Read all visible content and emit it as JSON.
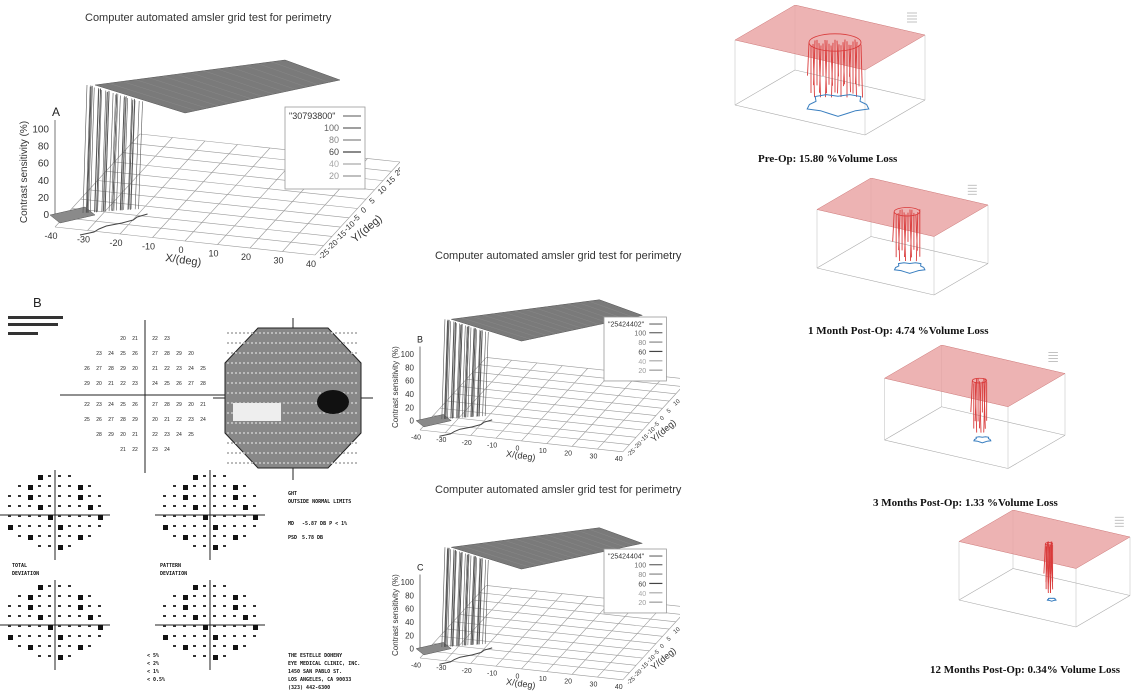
{
  "left_title": "Computer automated amsler grid test for perimetry",
  "mid_title_b": "Computer automated amsler grid test for perimetry",
  "mid_title_c": "Computer automated amsler grid test for perimetry",
  "panel_a_label": "A",
  "panel_b_label": "B",
  "panel_c_label": "C",
  "perimetry_label": "B",
  "perimetry_text": {
    "line1": "TOTAL",
    "line2": "DEVIATION",
    "line3": "PATTERN",
    "line4": "DEVIATION",
    "ght": "GHT",
    "ght_result": "OUTSIDE NORMAL LIMITS",
    "md": "MD",
    "md_val": "-5.87 DB  P < 1%",
    "psd": "PSD",
    "psd_val": "5.78 DB",
    "footer1": "THE ESTELLE DOHENY",
    "footer2": "EYE MEDICAL CLINIC, INC.",
    "footer3": "1450 SAN PABLO ST.",
    "footer4": "LOS ANGELES, CA 90033",
    "footer5": "(323) 442-6300",
    "legend1": "< 5%",
    "legend2": "< 2%",
    "legend3": "< 1%",
    "legend4": "< 0.5%"
  },
  "chart_data": [
    {
      "type": "surface3d",
      "panel": "A",
      "title": "Computer automated amsler grid test for perimetry",
      "zlabel": "Contrast sensitivity (%)",
      "xlabel": "X/(deg)",
      "ylabel": "Y/(deg)",
      "z_ticks": [
        "0",
        "20",
        "40",
        "60",
        "80",
        "100"
      ],
      "x_ticks": [
        "-40",
        "-30",
        "-20",
        "-10",
        "0",
        "10",
        "20",
        "30",
        "40"
      ],
      "y_ticks": [
        "-25",
        "-20",
        "-15",
        "-10",
        "-5",
        "0",
        "5",
        "10",
        "15",
        "20",
        "25"
      ],
      "legend_title": "\"30793800\"",
      "legend": [
        "100",
        "80",
        "60",
        "40",
        "20"
      ],
      "legend_colors": [
        "#666666",
        "#888888",
        "#444444",
        "#aaaaaa",
        "#999999"
      ]
    },
    {
      "type": "surface3d",
      "panel": "B",
      "title": "Computer automated amsler grid test for perimetry",
      "zlabel": "Contrast sensitivity (%)",
      "xlabel": "X/(deg)",
      "ylabel": "Y/(deg)",
      "z_ticks": [
        "0",
        "20",
        "40",
        "60",
        "80",
        "100"
      ],
      "x_ticks": [
        "-40",
        "-30",
        "-20",
        "-10",
        "0",
        "10",
        "20",
        "30",
        "40"
      ],
      "y_ticks": [
        "-25",
        "-20",
        "-15",
        "-10",
        "-5",
        "0",
        "5",
        "10",
        "15",
        "20",
        "25"
      ],
      "legend_title": "\"25424402\"",
      "legend": [
        "100",
        "80",
        "60",
        "40",
        "20"
      ],
      "legend_colors": [
        "#666666",
        "#888888",
        "#444444",
        "#aaaaaa",
        "#999999"
      ]
    },
    {
      "type": "surface3d",
      "panel": "C",
      "title": "Computer automated amsler grid test for perimetry",
      "zlabel": "Contrast sensitivity (%)",
      "xlabel": "X/(deg)",
      "ylabel": "Y/(deg)",
      "z_ticks": [
        "0",
        "20",
        "40",
        "60",
        "80",
        "100"
      ],
      "x_ticks": [
        "-40",
        "-30",
        "-20",
        "-10",
        "0",
        "10",
        "20",
        "30",
        "40"
      ],
      "y_ticks": [
        "-25",
        "-20",
        "-15",
        "-10",
        "-5",
        "0",
        "5",
        "10",
        "15",
        "20",
        "25"
      ],
      "legend_title": "\"25424404\"",
      "legend": [
        "100",
        "80",
        "60",
        "40",
        "20"
      ],
      "legend_colors": [
        "#666666",
        "#888888",
        "#444444",
        "#aaaaaa",
        "#999999"
      ]
    },
    {
      "type": "surface3d",
      "caption": "Pre-Op: 15.80 %Volume Loss",
      "volume_loss_percent": 15.8,
      "color": "#e07070"
    },
    {
      "type": "surface3d",
      "caption": "1 Month Post-Op: 4.74 %Volume Loss",
      "volume_loss_percent": 4.74,
      "color": "#e07070"
    },
    {
      "type": "surface3d",
      "caption": "3 Months Post-Op: 1.33 %Volume Loss",
      "volume_loss_percent": 1.33,
      "color": "#e07070"
    },
    {
      "type": "surface3d",
      "caption": "12 Months Post-Op: 0.34% Volume Loss",
      "volume_loss_percent": 0.34,
      "color": "#e07070"
    }
  ],
  "colors": {
    "grid": "#9a9a9a",
    "surface": "#707070",
    "plane_red": "#e8a0a0",
    "wall_red": "#d93a3a",
    "contour_blue": "#3a7fc0"
  }
}
